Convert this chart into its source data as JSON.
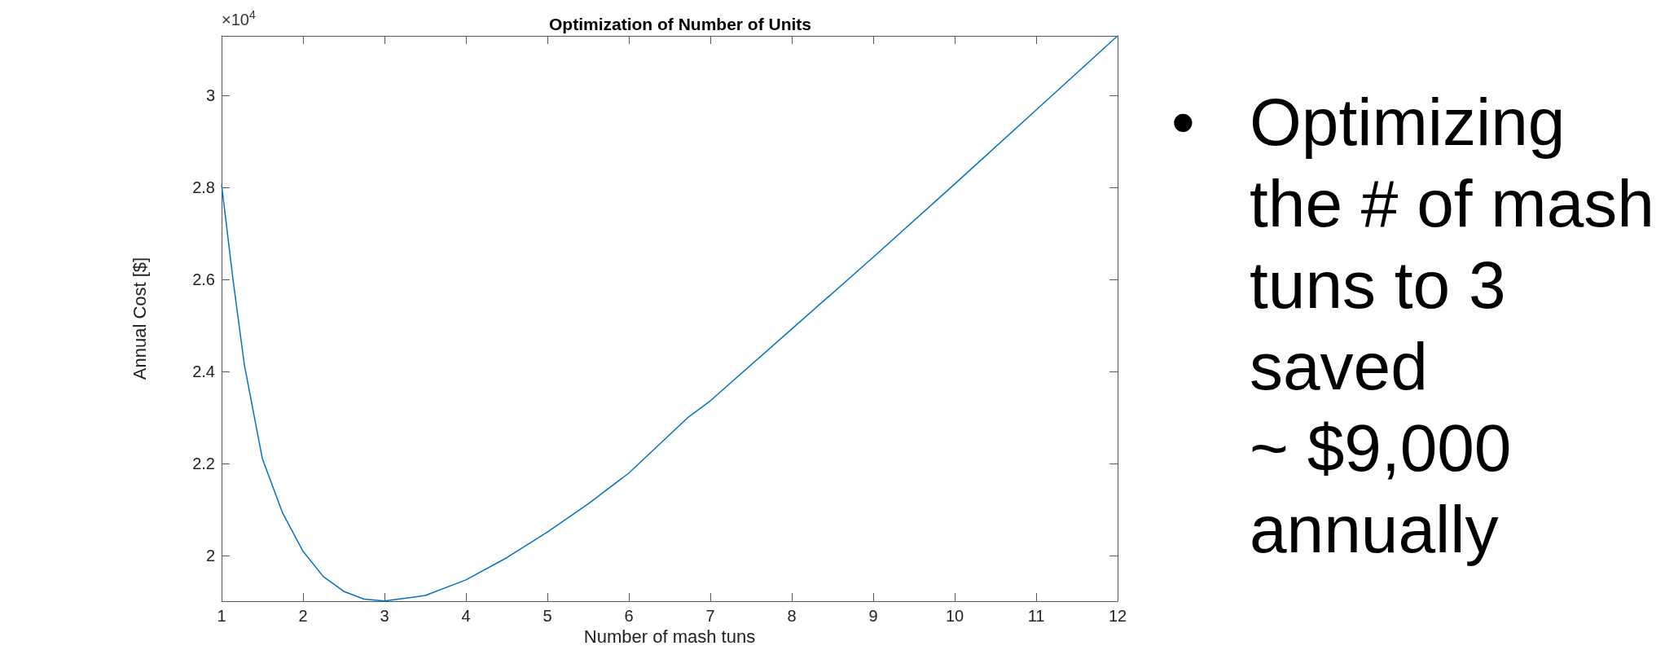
{
  "chart_data": {
    "type": "line",
    "title": "Optimization of Number of Units",
    "xlabel": "Number of mash tuns",
    "ylabel": "Annual Cost [$]",
    "annotations": [
      "×10$^{4}$",
      "Optimizing\nthe # of mash\ntuns to 3\nsaved\n~ $9,000\nannually",
      "•"
    ],
    "x": [
      1,
      1.14,
      1.28,
      1.5,
      1.75,
      2,
      2.25,
      2.5,
      2.75,
      3,
      3.5,
      4,
      4.5,
      5,
      5.5,
      6,
      6.72,
      7,
      8,
      9,
      10,
      11,
      12
    ],
    "series": [
      {
        "color": "#0072bd",
        "values": [
          2.806,
          2.6,
          2.414,
          2.211,
          2.092,
          2.009,
          1.954,
          1.922,
          1.905,
          1.901,
          1.913,
          1.947,
          1.995,
          2.051,
          2.112,
          2.179,
          2.299,
          2.336,
          2.492,
          2.648,
          2.807,
          2.968,
          3.129
        ]
      }
    ],
    "xlim": [
      1,
      12
    ],
    "xticks": [
      1,
      2,
      3,
      4,
      5,
      6,
      7,
      8,
      9,
      10,
      11,
      12
    ],
    "ylim": [
      1.9007,
      3.129
    ],
    "yticks": [
      2,
      2.2,
      2.4,
      2.6,
      2.8,
      3
    ],
    "grid": false,
    "marker": "none",
    "line_style": "solid"
  }
}
